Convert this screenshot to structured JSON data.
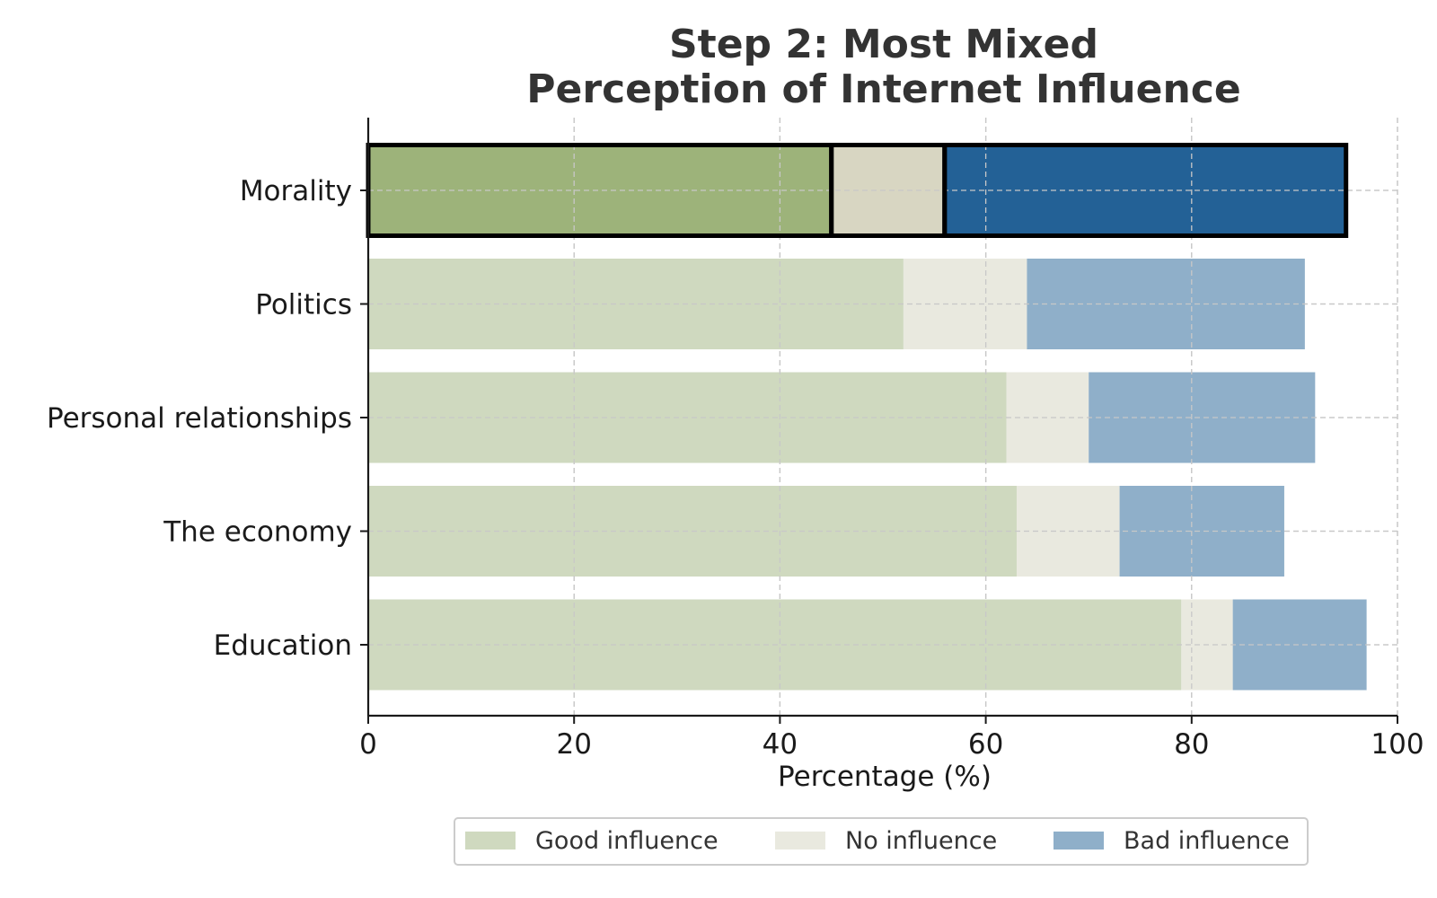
{
  "chart_data": {
    "type": "bar",
    "orientation": "horizontal",
    "stacked": true,
    "title_lines": [
      "Step 2: Most Mixed",
      "Perception of Internet Influence"
    ],
    "xlabel": "Percentage (%)",
    "ylabel": "",
    "xlim": [
      0,
      100
    ],
    "xticks": [
      0,
      20,
      40,
      60,
      80,
      100
    ],
    "grid": true,
    "legend_position": "bottom-center",
    "categories": [
      "Morality",
      "Politics",
      "Personal relationships",
      "The economy",
      "Education"
    ],
    "highlighted_category": "Morality",
    "series": [
      {
        "name": "Good influence",
        "color": "#cfd9bf",
        "highlight_color": "#9db37a",
        "values": [
          45,
          52,
          62,
          63,
          79
        ]
      },
      {
        "name": "No influence",
        "color": "#e9e9df",
        "highlight_color": "#d8d6c2",
        "values": [
          11,
          12,
          8,
          10,
          5
        ]
      },
      {
        "name": "Bad influence",
        "color": "#8fafc9",
        "highlight_color": "#236196",
        "values": [
          39,
          27,
          22,
          16,
          13
        ]
      }
    ]
  }
}
